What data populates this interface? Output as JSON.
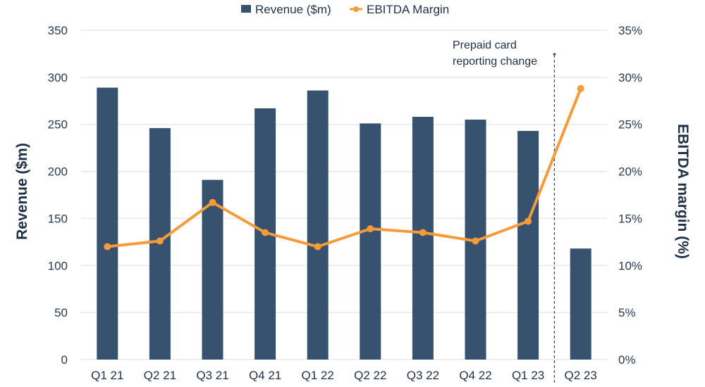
{
  "chart_data": {
    "type": "bar",
    "title": "",
    "categories": [
      "Q1 21",
      "Q2 21",
      "Q3 21",
      "Q4 21",
      "Q1 22",
      "Q2 22",
      "Q3 22",
      "Q4 22",
      "Q1 23",
      "Q2 23"
    ],
    "series": [
      {
        "name": "Revenue ($m)",
        "type": "bar",
        "axis": "left",
        "color": "#36526e",
        "values": [
          289,
          246,
          191,
          267,
          286,
          251,
          258,
          255,
          243,
          118
        ]
      },
      {
        "name": "EBITDA Margin",
        "type": "line",
        "axis": "right",
        "color": "#f79a3a",
        "values": [
          12.0,
          12.6,
          16.7,
          13.5,
          12.0,
          13.9,
          13.5,
          12.6,
          14.7,
          28.8
        ]
      }
    ],
    "ylabel": "Revenue ($m)",
    "ylabel_right": "EBITDA margin (%)",
    "ylim": [
      0,
      350
    ],
    "ylim_right": [
      0,
      35
    ],
    "yticks": [
      "0",
      "50",
      "100",
      "150",
      "200",
      "250",
      "300",
      "350"
    ],
    "yticks_values": [
      0,
      50,
      100,
      150,
      200,
      250,
      300,
      350
    ],
    "yticks_right": [
      "0%",
      "5%",
      "10%",
      "15%",
      "20%",
      "25%",
      "30%",
      "35%"
    ],
    "yticks_right_values": [
      0,
      5,
      10,
      15,
      20,
      25,
      30,
      35
    ],
    "grid": true,
    "legend_position": "top-center",
    "annotation": {
      "lines": [
        "Prepaid card",
        "reporting change"
      ],
      "divider_between": [
        "Q1 23",
        "Q2 23"
      ]
    },
    "colors": {
      "text": "#1f2f45",
      "grid": "#e8e8e8",
      "divider": "#36526e"
    }
  }
}
